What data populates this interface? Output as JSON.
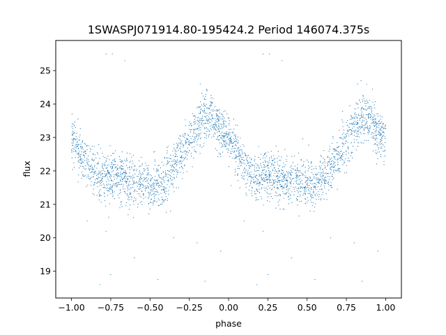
{
  "chart_data": {
    "type": "scatter",
    "title": "1SWASPJ071914.80-195424.2 Period 146074.375s",
    "xlabel": "phase",
    "ylabel": "flux",
    "xlim": [
      -1.1,
      1.1
    ],
    "ylim": [
      18.2,
      25.9
    ],
    "xticks": [
      -1.0,
      -0.75,
      -0.5,
      -0.25,
      0.0,
      0.25,
      0.5,
      0.75,
      1.0
    ],
    "xtick_labels": [
      "−1.00",
      "−0.75",
      "−0.50",
      "−0.25",
      "0.00",
      "0.25",
      "0.50",
      "0.75",
      "1.00"
    ],
    "yticks": [
      19,
      20,
      21,
      22,
      23,
      24,
      25
    ],
    "ytick_labels": [
      "19",
      "20",
      "21",
      "22",
      "23",
      "24",
      "25"
    ],
    "grid": false,
    "legend": "none",
    "point_color": "#1f77b4",
    "profile": {
      "phase": [
        0.0,
        0.05,
        0.1,
        0.15,
        0.2,
        0.25,
        0.3,
        0.35,
        0.4,
        0.45,
        0.5,
        0.55,
        0.6,
        0.65,
        0.7,
        0.75,
        0.8,
        0.85,
        0.9,
        0.95,
        1.0
      ],
      "flux": [
        23.0,
        22.6,
        22.2,
        21.9,
        21.8,
        21.8,
        21.8,
        21.75,
        21.7,
        21.65,
        21.6,
        21.6,
        21.75,
        22.1,
        22.5,
        22.9,
        23.3,
        23.6,
        23.5,
        23.2,
        23.0
      ]
    },
    "scatter_sigma": 0.35,
    "points_per_unit_phase": 1500,
    "outliers": [
      {
        "x": -0.78,
        "y": 25.5
      },
      {
        "x": -0.74,
        "y": 25.5
      },
      {
        "x": 0.22,
        "y": 25.5
      },
      {
        "x": 0.26,
        "y": 25.5
      },
      {
        "x": -0.66,
        "y": 25.3
      },
      {
        "x": 0.34,
        "y": 25.3
      },
      {
        "x": -0.18,
        "y": 24.6
      },
      {
        "x": 0.82,
        "y": 24.6
      },
      {
        "x": -0.82,
        "y": 18.6
      },
      {
        "x": 0.18,
        "y": 18.6
      },
      {
        "x": -0.75,
        "y": 18.9
      },
      {
        "x": 0.25,
        "y": 18.9
      },
      {
        "x": -0.6,
        "y": 19.4
      },
      {
        "x": 0.4,
        "y": 19.4
      },
      {
        "x": -0.45,
        "y": 18.75
      },
      {
        "x": 0.55,
        "y": 18.75
      },
      {
        "x": -0.2,
        "y": 19.85
      },
      {
        "x": 0.8,
        "y": 19.85
      },
      {
        "x": -0.05,
        "y": 19.6
      },
      {
        "x": 0.95,
        "y": 19.6
      },
      {
        "x": -0.35,
        "y": 20.0
      },
      {
        "x": 0.65,
        "y": 20.0
      },
      {
        "x": -0.78,
        "y": 20.2
      },
      {
        "x": 0.22,
        "y": 20.2
      },
      {
        "x": -0.9,
        "y": 20.5
      },
      {
        "x": 0.1,
        "y": 20.5
      },
      {
        "x": -0.15,
        "y": 18.7
      },
      {
        "x": 0.85,
        "y": 18.7
      }
    ]
  }
}
